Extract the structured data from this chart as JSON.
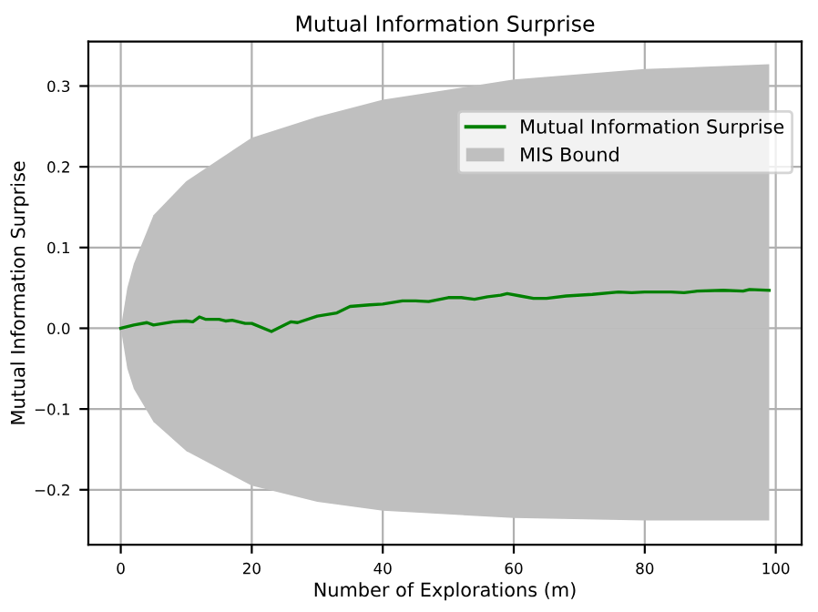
{
  "chart_data": {
    "type": "line",
    "title": "Mutual Information Surprise",
    "xlabel": "Number of Explorations (m)",
    "ylabel": "Mutual Information Surprise",
    "series": [
      {
        "name": "Mutual Information Surprise",
        "color": "#008000",
        "x": [
          0,
          2,
          4,
          5,
          8,
          10,
          11,
          12,
          13,
          15,
          16,
          17,
          19,
          20,
          23,
          26,
          27,
          30,
          33,
          35,
          38,
          40,
          43,
          45,
          47,
          50,
          52,
          54,
          56,
          58,
          59,
          61,
          63,
          65,
          68,
          72,
          76,
          78,
          80,
          84,
          86,
          88,
          92,
          95,
          96,
          99
        ],
        "values": [
          0,
          0.004,
          0.007,
          0.004,
          0.008,
          0.009,
          0.008,
          0.014,
          0.011,
          0.011,
          0.009,
          0.01,
          0.006,
          0.006,
          -0.004,
          0.008,
          0.007,
          0.015,
          0.019,
          0.027,
          0.029,
          0.03,
          0.034,
          0.034,
          0.033,
          0.038,
          0.038,
          0.036,
          0.039,
          0.041,
          0.043,
          0.04,
          0.037,
          0.037,
          0.04,
          0.042,
          0.045,
          0.044,
          0.045,
          0.045,
          0.044,
          0.046,
          0.047,
          0.046,
          0.048,
          0.047
        ]
      },
      {
        "type": "area",
        "color": "#bfbfbf",
        "x": [
          0,
          1,
          2,
          5,
          10,
          20,
          30,
          40,
          60,
          80,
          99
        ],
        "values": [
          0,
          -0.05,
          -0.075,
          -0.116,
          -0.152,
          -0.195,
          -0.215,
          -0.226,
          -0.235,
          -0.238,
          -0.238
        ]
      },
      {
        "name": "MIS Bound",
        "type": "area",
        "color": "#bfbfbf",
        "x": [
          0,
          1,
          2,
          5,
          10,
          20,
          30,
          40,
          60,
          80,
          99
        ],
        "values": [
          0,
          0.05,
          0.08,
          0.14,
          0.182,
          0.236,
          0.262,
          0.283,
          0.308,
          0.321,
          0.327
        ]
      }
    ],
    "xlim": [
      -4.95,
      103.95
    ],
    "xticks": [
      0,
      20,
      40,
      60,
      80,
      100
    ],
    "ylim": [
      -0.268,
      0.355
    ],
    "yticks": [
      {
        "value": -0.2,
        "label": "−0.2"
      },
      {
        "value": -0.1,
        "label": "−0.1"
      },
      {
        "value": 0.0,
        "label": "0.0"
      },
      {
        "value": 0.1,
        "label": "0.1"
      },
      {
        "value": 0.2,
        "label": "0.2"
      },
      {
        "value": 0.3,
        "label": "0.3"
      }
    ],
    "grid": true,
    "legend": "top right"
  }
}
